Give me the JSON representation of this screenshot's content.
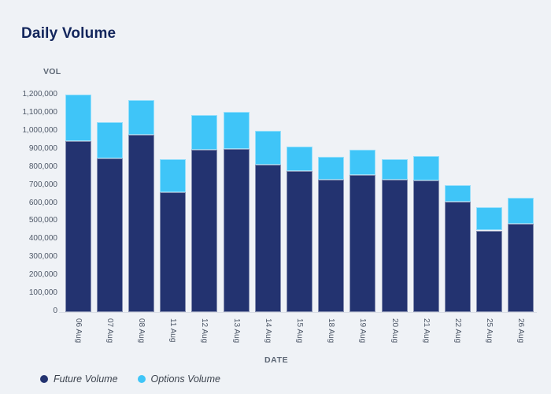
{
  "page": {
    "background": "#eff2f6"
  },
  "header": {
    "title": "Daily Volume"
  },
  "chart_data": {
    "type": "bar",
    "stacked": true,
    "title": "Daily Volume",
    "xlabel": "DATE",
    "ylabel": "VOL",
    "grid": false,
    "legend_position": "bottom-left",
    "categories": [
      "06 Aug",
      "07 Aug",
      "08 Aug",
      "11 Aug",
      "12 Aug",
      "13 Aug",
      "14 Aug",
      "15 Aug",
      "18 Aug",
      "19 Aug",
      "20 Aug",
      "21 Aug",
      "22 Aug",
      "25 Aug",
      "26 Aug"
    ],
    "series": [
      {
        "name": "Future Volume",
        "color": "#233370",
        "values": [
          945000,
          850000,
          980000,
          660000,
          895000,
          900000,
          815000,
          780000,
          730000,
          755000,
          730000,
          725000,
          608000,
          450000,
          487000
        ]
      },
      {
        "name": "Options Volume",
        "color": "#3fc5f8",
        "values": [
          255000,
          200000,
          190000,
          185000,
          190000,
          205000,
          185000,
          133000,
          128000,
          140000,
          113000,
          137000,
          90000,
          130000,
          145000
        ]
      }
    ],
    "ylim": [
      0,
      1200000
    ],
    "ytick_step": 100000,
    "ytick_labels": [
      "0",
      "100,000",
      "200,000",
      "300,000",
      "400,000",
      "500,000",
      "600,000",
      "700,000",
      "800,000",
      "900,000",
      "1,000,000",
      "1,100,000",
      "1,200,000"
    ]
  }
}
